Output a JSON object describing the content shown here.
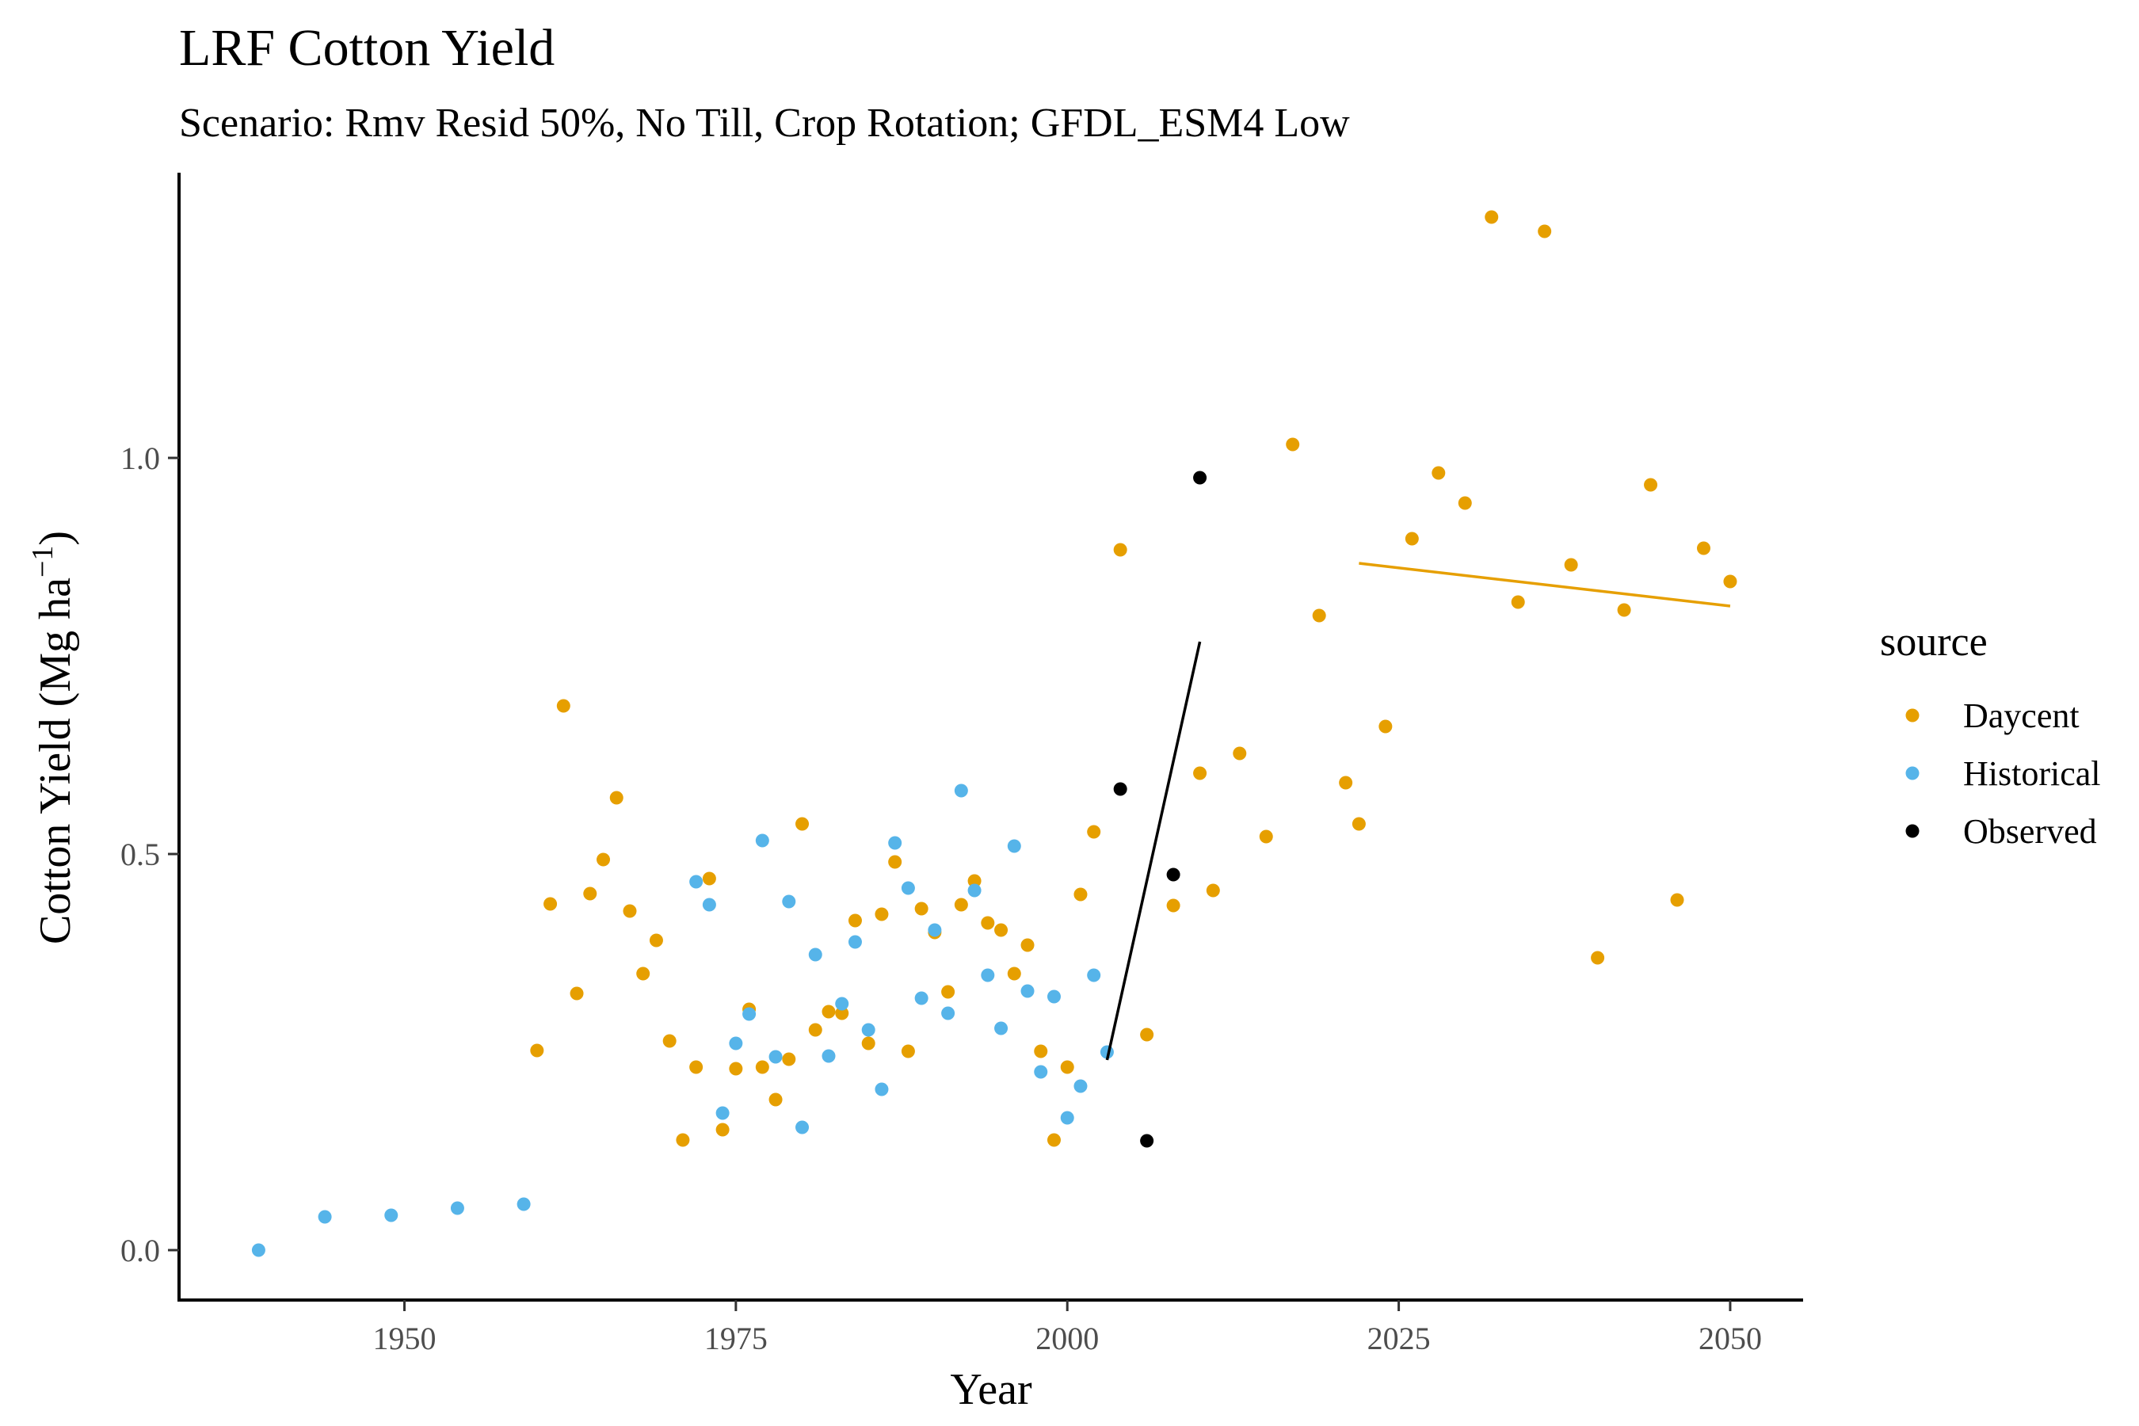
{
  "chart_data": {
    "type": "scatter",
    "title": "LRF Cotton Yield",
    "subtitle": "Scenario: Rmv Resid 50%, No Till, Crop Rotation; GFDL_ESM4 Low",
    "xlabel": "Year",
    "ylabel": "Cotton Yield (Mg ha",
    "ylabel_unit_exponent": "−1",
    "ylabel_close": ")",
    "xlim": [
      1933,
      2055.5
    ],
    "ylim": [
      -0.063,
      1.36
    ],
    "x_ticks": [
      1950,
      1975,
      2000,
      2025,
      2050
    ],
    "x_tick_labels": [
      "1950",
      "1975",
      "2000",
      "2025",
      "2050"
    ],
    "y_ticks": [
      0.0,
      0.5,
      1.0
    ],
    "y_tick_labels": [
      "0.0",
      "0.5",
      "1.0"
    ],
    "grid": false,
    "legend": {
      "title": "source",
      "position": "right",
      "entries": [
        "Daycent",
        "Historical",
        "Observed"
      ]
    },
    "colors": {
      "Daycent": "#E69F00",
      "Historical": "#56B4E9",
      "Observed": "#000000"
    },
    "series": [
      {
        "name": "Daycent",
        "points": [
          [
            1960,
            0.252
          ],
          [
            1961,
            0.437
          ],
          [
            1962,
            0.687
          ],
          [
            1963,
            0.324
          ],
          [
            1964,
            0.45
          ],
          [
            1965,
            0.493
          ],
          [
            1966,
            0.571
          ],
          [
            1967,
            0.428
          ],
          [
            1968,
            0.349
          ],
          [
            1969,
            0.391
          ],
          [
            1970,
            0.264
          ],
          [
            1971,
            0.139
          ],
          [
            1972,
            0.231
          ],
          [
            1973,
            0.469
          ],
          [
            1974,
            0.152
          ],
          [
            1975,
            0.229
          ],
          [
            1976,
            0.304
          ],
          [
            1977,
            0.231
          ],
          [
            1978,
            0.19
          ],
          [
            1979,
            0.241
          ],
          [
            1980,
            0.538
          ],
          [
            1981,
            0.278
          ],
          [
            1982,
            0.301
          ],
          [
            1983,
            0.299
          ],
          [
            1984,
            0.416
          ],
          [
            1985,
            0.261
          ],
          [
            1986,
            0.424
          ],
          [
            1987,
            0.49
          ],
          [
            1988,
            0.251
          ],
          [
            1989,
            0.431
          ],
          [
            1990,
            0.401
          ],
          [
            1991,
            0.326
          ],
          [
            1992,
            0.436
          ],
          [
            1993,
            0.466
          ],
          [
            1994,
            0.413
          ],
          [
            1995,
            0.404
          ],
          [
            1996,
            0.349
          ],
          [
            1997,
            0.385
          ],
          [
            1998,
            0.251
          ],
          [
            1999,
            0.139
          ],
          [
            2000,
            0.231
          ],
          [
            2001,
            0.449
          ],
          [
            2002,
            0.528
          ],
          [
            2004,
            0.884
          ],
          [
            2006,
            0.272
          ],
          [
            2008,
            0.435
          ],
          [
            2010,
            0.602
          ],
          [
            2011,
            0.454
          ],
          [
            2013,
            0.627
          ],
          [
            2015,
            0.522
          ],
          [
            2017,
            1.017
          ],
          [
            2019,
            0.801
          ],
          [
            2021,
            0.59
          ],
          [
            2022,
            0.538
          ],
          [
            2024,
            0.661
          ],
          [
            2026,
            0.898
          ],
          [
            2028,
            0.981
          ],
          [
            2030,
            0.943
          ],
          [
            2032,
            1.304
          ],
          [
            2034,
            0.818
          ],
          [
            2036,
            1.286
          ],
          [
            2038,
            0.865
          ],
          [
            2040,
            0.369
          ],
          [
            2042,
            0.808
          ],
          [
            2044,
            0.966
          ],
          [
            2046,
            0.442
          ],
          [
            2048,
            0.886
          ],
          [
            2050,
            0.844
          ]
        ]
      },
      {
        "name": "Historical",
        "points": [
          [
            1939,
            0.0
          ],
          [
            1944,
            0.042
          ],
          [
            1949,
            0.044
          ],
          [
            1954,
            0.053
          ],
          [
            1959,
            0.058
          ],
          [
            1972,
            0.465
          ],
          [
            1973,
            0.436
          ],
          [
            1974,
            0.173
          ],
          [
            1975,
            0.261
          ],
          [
            1976,
            0.298
          ],
          [
            1977,
            0.517
          ],
          [
            1978,
            0.244
          ],
          [
            1979,
            0.44
          ],
          [
            1980,
            0.155
          ],
          [
            1981,
            0.373
          ],
          [
            1982,
            0.245
          ],
          [
            1983,
            0.311
          ],
          [
            1984,
            0.389
          ],
          [
            1985,
            0.278
          ],
          [
            1986,
            0.203
          ],
          [
            1987,
            0.514
          ],
          [
            1988,
            0.457
          ],
          [
            1989,
            0.318
          ],
          [
            1990,
            0.404
          ],
          [
            1991,
            0.299
          ],
          [
            1992,
            0.58
          ],
          [
            1993,
            0.454
          ],
          [
            1994,
            0.347
          ],
          [
            1995,
            0.28
          ],
          [
            1996,
            0.51
          ],
          [
            1997,
            0.327
          ],
          [
            1998,
            0.225
          ],
          [
            1999,
            0.32
          ],
          [
            2000,
            0.167
          ],
          [
            2001,
            0.207
          ],
          [
            2002,
            0.347
          ],
          [
            2003,
            0.25
          ]
        ]
      },
      {
        "name": "Observed",
        "points": [
          [
            2004,
            0.582
          ],
          [
            2006,
            0.138
          ],
          [
            2008,
            0.474
          ],
          [
            2010,
            0.975
          ]
        ]
      }
    ],
    "trend_lines": [
      {
        "series": "Observed",
        "color": "#000000",
        "x": [
          2003,
          2010
        ],
        "y": [
          0.24,
          0.768
        ]
      },
      {
        "series": "Daycent",
        "color": "#E69F00",
        "x": [
          2022,
          2050
        ],
        "y": [
          0.867,
          0.813
        ]
      }
    ]
  }
}
